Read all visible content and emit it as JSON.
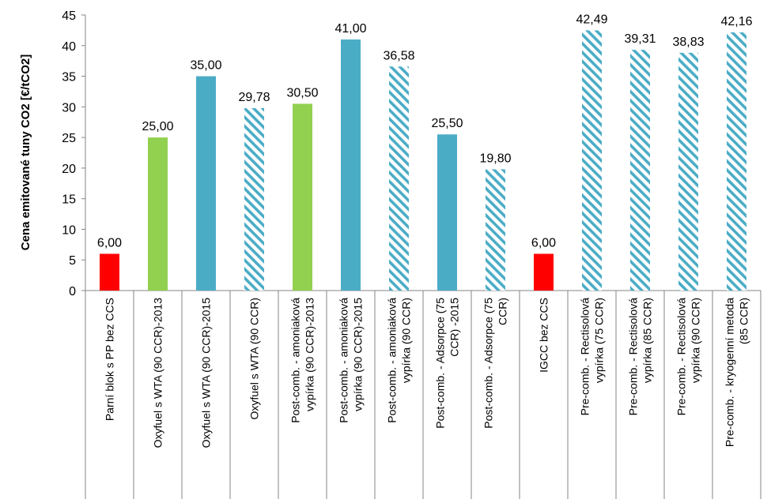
{
  "chart_data": {
    "type": "bar",
    "ylabel": "Cena emitované tuny CO2 [€/tCO2]",
    "ylim": [
      0,
      45
    ],
    "yticks": [
      0,
      5,
      10,
      15,
      20,
      25,
      30,
      35,
      40,
      45
    ],
    "grid": false,
    "categories": [
      [
        "Parní blok s PP bez CCS"
      ],
      [
        "Oxyfuel s  WTA (90 CCR)-2013"
      ],
      [
        "Oxyfuel s  WTA (90 CCR)-2015"
      ],
      [
        "Oxyfuel s  WTA (90 CCR)"
      ],
      [
        "Post-comb. - amoniaková",
        "vypírka (90 CCR)-2013"
      ],
      [
        "Post-comb. - amoniaková",
        "vypírka (90 CCR)-2015"
      ],
      [
        "Post-comb. - amoniaková",
        "vypírka (90 CCR)"
      ],
      [
        "Post-comb. - Adsorpce (75",
        "CCR) -2015"
      ],
      [
        "Post-comb. - Adsorpce (75",
        "CCR)"
      ],
      [
        "IGCC bez CCS"
      ],
      [
        "Pre-comb. - Rectisolová",
        "vypírka (75 CCR)"
      ],
      [
        "Pre-comb. - Rectisolová",
        "vypírka (85 CCR)"
      ],
      [
        "Pre-comb. - Rectisolová",
        "vypírka (90 CCR)"
      ],
      [
        "Pre-comb. - kryogenní metoda",
        "(85 CCR)"
      ]
    ],
    "values": [
      6.0,
      25.0,
      35.0,
      29.78,
      30.5,
      41.0,
      36.58,
      25.5,
      19.8,
      6.0,
      42.49,
      39.31,
      38.83,
      42.16
    ],
    "value_labels": [
      "6,00",
      "25,00",
      "35,00",
      "29,78",
      "30,50",
      "41,00",
      "36,58",
      "25,50",
      "19,80",
      "6,00",
      "42,49",
      "39,31",
      "38,83",
      "42,16"
    ],
    "bar_colors": [
      "#ff0000",
      "#92d050",
      "#4bacc6",
      "#4bacc6",
      "#92d050",
      "#4bacc6",
      "#4bacc6",
      "#4bacc6",
      "#4bacc6",
      "#ff0000",
      "#4bacc6",
      "#4bacc6",
      "#4bacc6",
      "#4bacc6"
    ],
    "bar_fill": [
      "solid",
      "solid",
      "solid",
      "hatched",
      "solid",
      "solid",
      "hatched",
      "solid",
      "hatched",
      "solid",
      "hatched",
      "hatched",
      "hatched",
      "hatched"
    ]
  }
}
